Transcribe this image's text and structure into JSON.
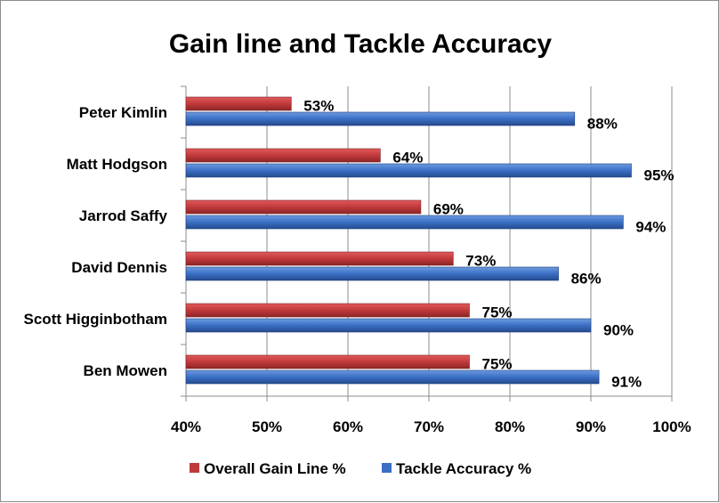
{
  "chart_data": {
    "type": "bar",
    "orientation": "horizontal",
    "title": "Gain line and Tackle Accuracy",
    "categories": [
      "Peter Kimlin",
      "Matt Hodgson",
      "Jarrod Saffy",
      "David Dennis",
      "Scott Higginbotham",
      "Ben Mowen"
    ],
    "series": [
      {
        "name": "Overall Gain Line %",
        "color": "#c0393b",
        "values": [
          53,
          64,
          69,
          73,
          75,
          75
        ],
        "labels": [
          "53%",
          "64%",
          "69%",
          "73%",
          "75%",
          "75%"
        ]
      },
      {
        "name": "Tackle Accuracy %",
        "color": "#3b6fc4",
        "values": [
          88,
          95,
          94,
          86,
          90,
          91
        ],
        "labels": [
          "88%",
          "95%",
          "94%",
          "86%",
          "90%",
          "91%"
        ]
      }
    ],
    "xlim": [
      40,
      100
    ],
    "x_ticks": [
      40,
      50,
      60,
      70,
      80,
      90,
      100
    ],
    "x_tick_labels": [
      "40%",
      "50%",
      "60%",
      "70%",
      "80%",
      "90%",
      "100%"
    ],
    "grid": true,
    "legend_position": "bottom"
  }
}
